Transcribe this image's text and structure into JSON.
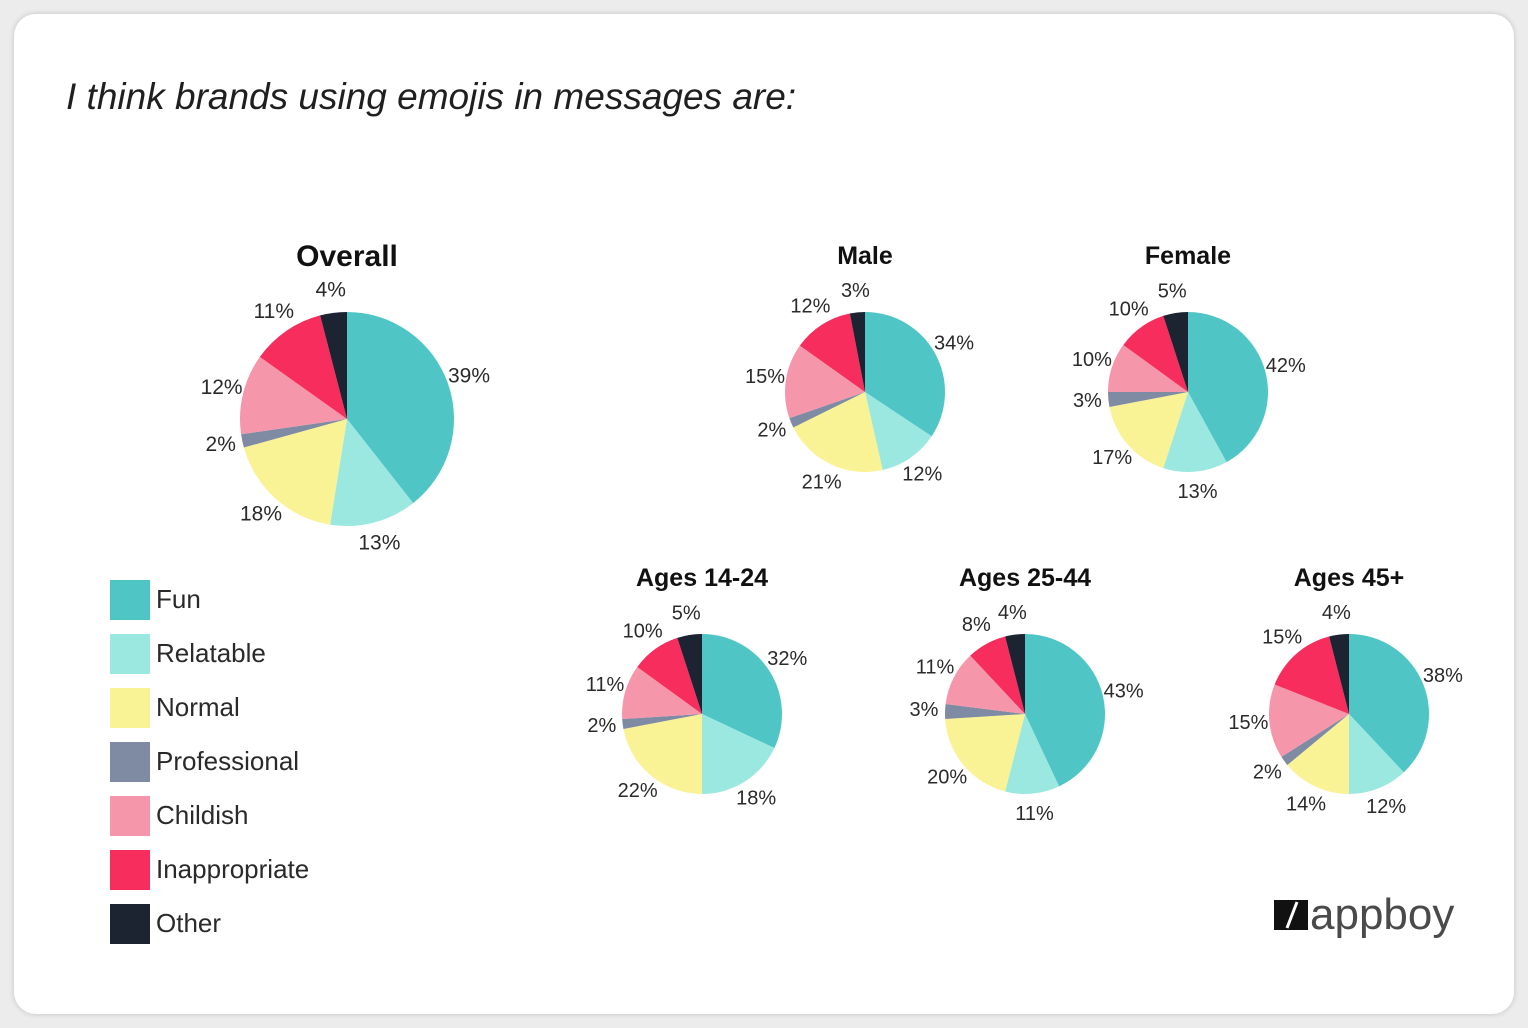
{
  "title": "I think brands using emojis in messages are:",
  "categories": [
    "Fun",
    "Relatable",
    "Normal",
    "Professional",
    "Childish",
    "Inappropriate",
    "Other"
  ],
  "colors": {
    "Fun": "#4fc6c5",
    "Relatable": "#9be8e1",
    "Normal": "#f9f396",
    "Professional": "#7f8ba3",
    "Childish": "#f596ab",
    "Inappropriate": "#f72d5d",
    "Other": "#1c2331"
  },
  "logo": {
    "text": "appboy"
  },
  "chart_data": [
    {
      "type": "pie",
      "title": "Overall",
      "categories": [
        "Fun",
        "Relatable",
        "Normal",
        "Professional",
        "Childish",
        "Inappropriate",
        "Other"
      ],
      "values": [
        39,
        13,
        18,
        2,
        12,
        11,
        4
      ]
    },
    {
      "type": "pie",
      "title": "Male",
      "categories": [
        "Fun",
        "Relatable",
        "Normal",
        "Professional",
        "Childish",
        "Inappropriate",
        "Other"
      ],
      "values": [
        34,
        12,
        21,
        2,
        15,
        12,
        3
      ]
    },
    {
      "type": "pie",
      "title": "Female",
      "categories": [
        "Fun",
        "Relatable",
        "Normal",
        "Professional",
        "Childish",
        "Inappropriate",
        "Other"
      ],
      "values": [
        42,
        13,
        17,
        3,
        10,
        10,
        5
      ]
    },
    {
      "type": "pie",
      "title": "Ages 14-24",
      "categories": [
        "Fun",
        "Relatable",
        "Normal",
        "Professional",
        "Childish",
        "Inappropriate",
        "Other"
      ],
      "values": [
        32,
        18,
        22,
        2,
        11,
        10,
        5
      ]
    },
    {
      "type": "pie",
      "title": "Ages 25-44",
      "categories": [
        "Fun",
        "Relatable",
        "Normal",
        "Professional",
        "Childish",
        "Inappropriate",
        "Other"
      ],
      "values": [
        43,
        11,
        20,
        3,
        11,
        8,
        4
      ]
    },
    {
      "type": "pie",
      "title": "Ages 45+",
      "categories": [
        "Fun",
        "Relatable",
        "Normal",
        "Professional",
        "Childish",
        "Inappropriate",
        "Other"
      ],
      "values": [
        38,
        12,
        14,
        2,
        15,
        15,
        4
      ]
    }
  ]
}
